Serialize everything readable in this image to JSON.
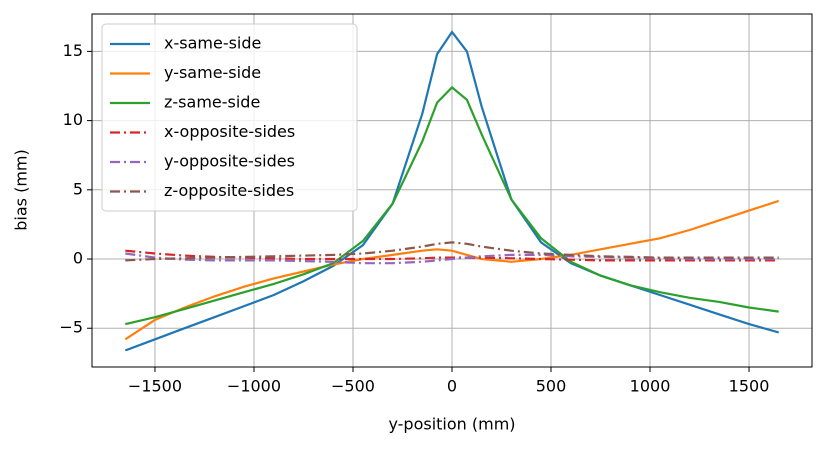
{
  "chart_data": {
    "type": "line",
    "xlabel": "y-position (mm)",
    "ylabel": "bias (mm)",
    "x": [
      -1650,
      -1500,
      -1350,
      -1200,
      -1050,
      -900,
      -750,
      -600,
      -450,
      -300,
      -150,
      -75,
      0,
      75,
      150,
      300,
      450,
      600,
      750,
      900,
      1050,
      1200,
      1350,
      1500,
      1650
    ],
    "series": [
      {
        "name": "x-same-side",
        "color": "#1f77b4",
        "linestyle": "solid",
        "values": [
          -6.6,
          -5.8,
          -5.0,
          -4.2,
          -3.4,
          -2.6,
          -1.6,
          -0.5,
          1.0,
          4.0,
          10.5,
          14.8,
          16.4,
          15.0,
          11.0,
          4.3,
          1.2,
          -0.3,
          -1.2,
          -1.9,
          -2.6,
          -3.3,
          -4.0,
          -4.7,
          -5.3
        ]
      },
      {
        "name": "y-same-side",
        "color": "#ff7f0e",
        "linestyle": "solid",
        "values": [
          -5.8,
          -4.4,
          -3.5,
          -2.7,
          -2.0,
          -1.4,
          -0.9,
          -0.4,
          0.0,
          0.3,
          0.6,
          0.7,
          0.6,
          0.3,
          0.0,
          -0.2,
          0.0,
          0.3,
          0.7,
          1.1,
          1.5,
          2.1,
          2.8,
          3.5,
          4.2
        ]
      },
      {
        "name": "z-same-side",
        "color": "#2ca02c",
        "linestyle": "solid",
        "values": [
          -4.7,
          -4.2,
          -3.6,
          -3.0,
          -2.4,
          -1.8,
          -1.1,
          -0.3,
          1.3,
          4.0,
          8.5,
          11.3,
          12.4,
          11.5,
          9.0,
          4.3,
          1.5,
          -0.2,
          -1.2,
          -1.9,
          -2.4,
          -2.8,
          -3.1,
          -3.5,
          -3.8
        ]
      },
      {
        "name": "x-opposite-sides",
        "color": "#d62728",
        "linestyle": "dashdot",
        "values": [
          0.6,
          0.4,
          0.25,
          0.15,
          0.1,
          0.05,
          0.0,
          0.0,
          0.0,
          0.0,
          0.05,
          0.1,
          0.1,
          0.1,
          0.1,
          0.05,
          0.0,
          -0.05,
          -0.1,
          -0.1,
          -0.1,
          -0.1,
          -0.1,
          -0.1,
          -0.1
        ]
      },
      {
        "name": "y-opposite-sides",
        "color": "#9467bd",
        "linestyle": "dashdot",
        "values": [
          0.4,
          0.1,
          -0.05,
          -0.1,
          -0.1,
          -0.1,
          -0.15,
          -0.2,
          -0.3,
          -0.3,
          -0.2,
          -0.1,
          0.0,
          0.1,
          0.2,
          0.3,
          0.3,
          0.2,
          0.15,
          0.1,
          0.05,
          0.0,
          0.0,
          0.0,
          0.0
        ]
      },
      {
        "name": "z-opposite-sides",
        "color": "#8c564b",
        "linestyle": "dashdot",
        "values": [
          -0.1,
          0.0,
          0.05,
          0.1,
          0.15,
          0.2,
          0.25,
          0.3,
          0.4,
          0.6,
          0.9,
          1.1,
          1.2,
          1.1,
          0.9,
          0.6,
          0.4,
          0.3,
          0.2,
          0.15,
          0.1,
          0.1,
          0.1,
          0.1,
          0.1
        ]
      }
    ],
    "xlim": [
      -1818,
      1818
    ],
    "ylim": [
      -7.8,
      17.7
    ],
    "xticks": [
      {
        "value": -1500,
        "label": "−1500"
      },
      {
        "value": -1000,
        "label": "−1000"
      },
      {
        "value": -500,
        "label": "−500"
      },
      0,
      500,
      1000,
      1500
    ],
    "yticks": [
      {
        "value": -5,
        "label": "−5"
      },
      0,
      5,
      10,
      15
    ],
    "grid": true,
    "legend": "upper-left"
  }
}
